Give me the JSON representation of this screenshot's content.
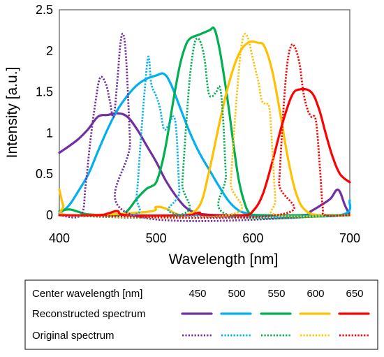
{
  "chart_data": {
    "type": "line",
    "xlabel": "Wavelength [nm]",
    "ylabel": "Intensity [a.u.]",
    "xlim": [
      400,
      700
    ],
    "ylim": [
      0,
      2.5
    ],
    "x_ticks": [
      "400",
      "500",
      "600",
      "700"
    ],
    "y_ticks": [
      "0",
      "0.5",
      "1",
      "1.5",
      "2",
      "2.5"
    ],
    "grid": false,
    "legend": {
      "placement": "bottom",
      "header_label": "Center wavelength [nm]",
      "row_labels": [
        "Reconstructed spectrum",
        "Original spectrum"
      ],
      "center_wavelengths": [
        "450",
        "500",
        "550",
        "600",
        "650"
      ]
    },
    "series": [
      {
        "kind": "reconstructed",
        "center": "450",
        "color": "#7030a0",
        "dash": "solid",
        "points": [
          [
            400,
            0.76
          ],
          [
            410,
            0.84
          ],
          [
            420,
            0.93
          ],
          [
            430,
            1.05
          ],
          [
            440,
            1.2
          ],
          [
            450,
            1.22
          ],
          [
            460,
            1.24
          ],
          [
            470,
            1.2
          ],
          [
            480,
            1.05
          ],
          [
            490,
            0.85
          ],
          [
            500,
            0.65
          ],
          [
            510,
            0.42
          ],
          [
            520,
            0.24
          ],
          [
            530,
            0.1
          ],
          [
            540,
            0.03
          ],
          [
            550,
            0.01
          ],
          [
            570,
            0.0
          ],
          [
            650,
            0.0
          ],
          [
            660,
            0.05
          ],
          [
            670,
            0.12
          ],
          [
            680,
            0.2
          ],
          [
            688,
            0.31
          ],
          [
            695,
            0.12
          ],
          [
            700,
            0.0
          ]
        ]
      },
      {
        "kind": "original",
        "center": "450",
        "color": "#7030a0",
        "dash": "dot",
        "points": [
          [
            400,
            0.0
          ],
          [
            422,
            0.0
          ],
          [
            427,
            0.35
          ],
          [
            432,
            0.9
          ],
          [
            437,
            1.35
          ],
          [
            442,
            1.67
          ],
          [
            448,
            1.6
          ],
          [
            452,
            1.4
          ],
          [
            456,
            1.2
          ],
          [
            460,
            1.65
          ],
          [
            463,
            2.08
          ],
          [
            466,
            2.2
          ],
          [
            469,
            1.9
          ],
          [
            473,
            0.9
          ],
          [
            476,
            0.0
          ],
          [
            700,
            0.0
          ]
        ]
      },
      {
        "kind": "reconstructed",
        "center": "500",
        "color": "#00b0f0",
        "dash": "solid",
        "points": [
          [
            400,
            0.02
          ],
          [
            410,
            0.12
          ],
          [
            420,
            0.3
          ],
          [
            430,
            0.5
          ],
          [
            440,
            0.78
          ],
          [
            450,
            1.05
          ],
          [
            460,
            1.28
          ],
          [
            470,
            1.45
          ],
          [
            480,
            1.58
          ],
          [
            490,
            1.66
          ],
          [
            500,
            1.7
          ],
          [
            508,
            1.72
          ],
          [
            515,
            1.6
          ],
          [
            525,
            1.3
          ],
          [
            535,
            1.0
          ],
          [
            545,
            0.75
          ],
          [
            555,
            0.55
          ],
          [
            565,
            0.35
          ],
          [
            575,
            0.17
          ],
          [
            585,
            0.06
          ],
          [
            595,
            0.02
          ],
          [
            610,
            0.0
          ],
          [
            690,
            0.0
          ],
          [
            700,
            0.18
          ]
        ]
      },
      {
        "kind": "original",
        "center": "500",
        "color": "#00b0f0",
        "dash": "dot",
        "points": [
          [
            400,
            0.0
          ],
          [
            476,
            0.0
          ],
          [
            480,
            0.25
          ],
          [
            484,
            0.9
          ],
          [
            488,
            1.5
          ],
          [
            492,
            1.93
          ],
          [
            495,
            1.6
          ],
          [
            500,
            1.45
          ],
          [
            504,
            1.3
          ],
          [
            508,
            1.05
          ],
          [
            513,
            1.1
          ],
          [
            518,
            1.2
          ],
          [
            521,
            1.0
          ],
          [
            524,
            0.3
          ],
          [
            527,
            0.0
          ],
          [
            700,
            0.0
          ]
        ]
      },
      {
        "kind": "reconstructed",
        "center": "550",
        "color": "#00b050",
        "dash": "solid",
        "points": [
          [
            400,
            0.05
          ],
          [
            410,
            0.07
          ],
          [
            420,
            0.04
          ],
          [
            430,
            0.01
          ],
          [
            460,
            0.0
          ],
          [
            470,
            0.05
          ],
          [
            480,
            0.2
          ],
          [
            490,
            0.32
          ],
          [
            495,
            0.35
          ],
          [
            500,
            0.4
          ],
          [
            505,
            0.58
          ],
          [
            510,
            0.85
          ],
          [
            515,
            1.2
          ],
          [
            520,
            1.55
          ],
          [
            525,
            1.85
          ],
          [
            530,
            2.05
          ],
          [
            535,
            2.15
          ],
          [
            545,
            2.2
          ],
          [
            555,
            2.25
          ],
          [
            560,
            2.27
          ],
          [
            565,
            2.05
          ],
          [
            570,
            1.7
          ],
          [
            575,
            1.3
          ],
          [
            580,
            0.85
          ],
          [
            585,
            0.45
          ],
          [
            590,
            0.2
          ],
          [
            596,
            0.03
          ],
          [
            605,
            0.0
          ],
          [
            700,
            0.0
          ]
        ]
      },
      {
        "kind": "original",
        "center": "550",
        "color": "#00b050",
        "dash": "dot",
        "points": [
          [
            400,
            0.0
          ],
          [
            524,
            0.0
          ],
          [
            527,
            0.4
          ],
          [
            531,
            1.1
          ],
          [
            535,
            1.7
          ],
          [
            539,
            2.05
          ],
          [
            542,
            2.15
          ],
          [
            546,
            2.1
          ],
          [
            550,
            1.9
          ],
          [
            554,
            1.5
          ],
          [
            558,
            1.45
          ],
          [
            562,
            1.5
          ],
          [
            566,
            1.55
          ],
          [
            569,
            1.2
          ],
          [
            572,
            0.5
          ],
          [
            575,
            0.0
          ],
          [
            700,
            0.0
          ]
        ]
      },
      {
        "kind": "reconstructed",
        "center": "600",
        "color": "#ffc000",
        "dash": "solid",
        "points": [
          [
            400,
            0.31
          ],
          [
            404,
            0.12
          ],
          [
            409,
            0.0
          ],
          [
            490,
            0.04
          ],
          [
            500,
            0.1
          ],
          [
            510,
            0.08
          ],
          [
            520,
            0.02
          ],
          [
            530,
            0.0
          ],
          [
            545,
            0.12
          ],
          [
            555,
            0.55
          ],
          [
            565,
            1.1
          ],
          [
            575,
            1.6
          ],
          [
            585,
            1.95
          ],
          [
            595,
            2.1
          ],
          [
            605,
            2.1
          ],
          [
            612,
            2.05
          ],
          [
            620,
            1.75
          ],
          [
            628,
            1.25
          ],
          [
            636,
            0.7
          ],
          [
            645,
            0.25
          ],
          [
            655,
            0.05
          ],
          [
            670,
            0.0
          ],
          [
            700,
            0.0
          ]
        ]
      },
      {
        "kind": "original",
        "center": "600",
        "color": "#ffc000",
        "dash": "dot",
        "points": [
          [
            400,
            0.0
          ],
          [
            574,
            0.0
          ],
          [
            577,
            0.4
          ],
          [
            581,
            1.1
          ],
          [
            585,
            1.7
          ],
          [
            588,
            2.05
          ],
          [
            591,
            2.2
          ],
          [
            595,
            2.15
          ],
          [
            599,
            1.95
          ],
          [
            603,
            1.75
          ],
          [
            606,
            1.6
          ],
          [
            609,
            1.4
          ],
          [
            613,
            1.35
          ],
          [
            617,
            1.3
          ],
          [
            620,
            0.8
          ],
          [
            623,
            0.2
          ],
          [
            625,
            0.0
          ],
          [
            700,
            0.0
          ]
        ]
      },
      {
        "kind": "reconstructed",
        "center": "650",
        "color": "#ff0000",
        "dash": "solid",
        "points": [
          [
            400,
            0.0
          ],
          [
            440,
            0.0
          ],
          [
            450,
            0.02
          ],
          [
            460,
            0.05
          ],
          [
            470,
            0.0
          ],
          [
            530,
            0.0
          ],
          [
            540,
            0.02
          ],
          [
            545,
            0.03
          ],
          [
            550,
            0.0
          ],
          [
            590,
            0.0
          ],
          [
            600,
            0.05
          ],
          [
            610,
            0.25
          ],
          [
            620,
            0.65
          ],
          [
            630,
            1.1
          ],
          [
            640,
            1.45
          ],
          [
            648,
            1.53
          ],
          [
            660,
            1.5
          ],
          [
            668,
            1.3
          ],
          [
            675,
            1.0
          ],
          [
            682,
            0.72
          ],
          [
            690,
            0.5
          ],
          [
            700,
            0.4
          ]
        ]
      },
      {
        "kind": "original",
        "center": "650",
        "color": "#ff0000",
        "dash": "dot",
        "points": [
          [
            400,
            0.0
          ],
          [
            624,
            0.0
          ],
          [
            627,
            0.4
          ],
          [
            631,
            1.2
          ],
          [
            635,
            1.8
          ],
          [
            639,
            2.05
          ],
          [
            643,
            2.05
          ],
          [
            648,
            1.85
          ],
          [
            652,
            1.5
          ],
          [
            656,
            1.3
          ],
          [
            660,
            1.2
          ],
          [
            665,
            1.15
          ],
          [
            669,
            0.6
          ],
          [
            672,
            0.1
          ],
          [
            675,
            0.0
          ],
          [
            700,
            0.0
          ]
        ]
      }
    ]
  }
}
